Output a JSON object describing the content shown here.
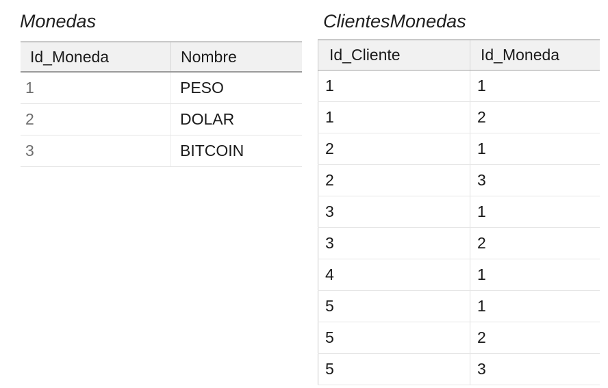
{
  "monedas": {
    "title": "Monedas",
    "columns": [
      "Id_Moneda",
      "Nombre"
    ],
    "rows": [
      [
        "1",
        "PESO"
      ],
      [
        "2",
        "DOLAR"
      ],
      [
        "3",
        "BITCOIN"
      ]
    ]
  },
  "clientes_monedas": {
    "title": "ClientesMonedas",
    "columns": [
      "Id_Cliente",
      "Id_Moneda"
    ],
    "rows": [
      [
        "1",
        "1"
      ],
      [
        "1",
        "2"
      ],
      [
        "2",
        "1"
      ],
      [
        "2",
        "3"
      ],
      [
        "3",
        "1"
      ],
      [
        "3",
        "2"
      ],
      [
        "4",
        "1"
      ],
      [
        "5",
        "1"
      ],
      [
        "5",
        "2"
      ],
      [
        "5",
        "3"
      ]
    ]
  }
}
